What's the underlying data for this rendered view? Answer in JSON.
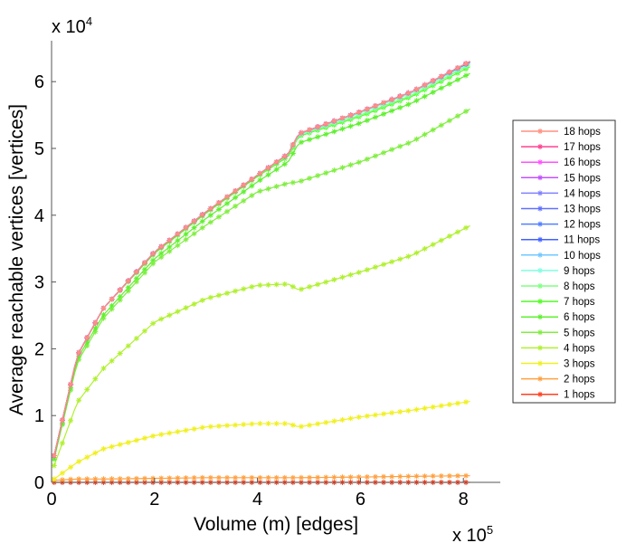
{
  "chart_data": {
    "type": "line",
    "title": "",
    "xlabel": "Volume (m) [edges]",
    "ylabel": "Average reachable vertices [vertices]",
    "x_multiplier": "x 10",
    "x_exponent": "5",
    "y_multiplier": "x 10",
    "y_exponent": "4",
    "xlim": [
      0,
      8.7
    ],
    "ylim": [
      0,
      6.6
    ],
    "xticks": [
      "0",
      "2",
      "4",
      "6",
      "8"
    ],
    "yticks": [
      "0",
      "1",
      "2",
      "3",
      "4",
      "5",
      "6"
    ],
    "grid": false,
    "legend_position": "right",
    "x": [
      0.05,
      0.5,
      1.0,
      2.0,
      3.0,
      4.0,
      4.6,
      4.8,
      6.0,
      7.0,
      8.2
    ],
    "series": [
      {
        "name": "18 hops",
        "color": "#ff9080",
        "values": [
          0.4,
          1.9,
          2.6,
          3.45,
          4.05,
          4.6,
          4.92,
          5.22,
          5.55,
          5.85,
          6.33
        ]
      },
      {
        "name": "17 hops",
        "color": "#ff4090",
        "values": [
          0.4,
          1.9,
          2.6,
          3.45,
          4.05,
          4.6,
          4.92,
          5.22,
          5.55,
          5.85,
          6.33
        ]
      },
      {
        "name": "16 hops",
        "color": "#ff50ff",
        "values": [
          0.4,
          1.9,
          2.6,
          3.45,
          4.05,
          4.6,
          4.92,
          5.22,
          5.55,
          5.85,
          6.33
        ]
      },
      {
        "name": "15 hops",
        "color": "#c050ff",
        "values": [
          0.4,
          1.9,
          2.6,
          3.45,
          4.05,
          4.6,
          4.92,
          5.22,
          5.55,
          5.85,
          6.33
        ]
      },
      {
        "name": "14 hops",
        "color": "#8080ff",
        "values": [
          0.4,
          1.9,
          2.6,
          3.45,
          4.05,
          4.6,
          4.92,
          5.22,
          5.55,
          5.85,
          6.33
        ]
      },
      {
        "name": "13 hops",
        "color": "#6070ff",
        "values": [
          0.4,
          1.9,
          2.6,
          3.45,
          4.05,
          4.6,
          4.92,
          5.22,
          5.55,
          5.85,
          6.33
        ]
      },
      {
        "name": "12 hops",
        "color": "#5080ff",
        "values": [
          0.4,
          1.9,
          2.6,
          3.45,
          4.05,
          4.6,
          4.92,
          5.22,
          5.55,
          5.85,
          6.33
        ]
      },
      {
        "name": "11 hops",
        "color": "#4060ff",
        "values": [
          0.4,
          1.9,
          2.6,
          3.45,
          4.05,
          4.6,
          4.92,
          5.22,
          5.55,
          5.85,
          6.32
        ]
      },
      {
        "name": "10 hops",
        "color": "#70c8ff",
        "values": [
          0.4,
          1.9,
          2.6,
          3.45,
          4.05,
          4.6,
          4.92,
          5.22,
          5.55,
          5.85,
          6.32
        ]
      },
      {
        "name": "9 hops",
        "color": "#80ffe0",
        "values": [
          0.4,
          1.9,
          2.6,
          3.45,
          4.05,
          4.6,
          4.92,
          5.2,
          5.53,
          5.83,
          6.3
        ]
      },
      {
        "name": "8 hops",
        "color": "#80ff80",
        "values": [
          0.4,
          1.9,
          2.6,
          3.45,
          4.05,
          4.6,
          4.9,
          5.2,
          5.5,
          5.8,
          6.28
        ]
      },
      {
        "name": "7 hops",
        "color": "#50ff20",
        "values": [
          0.4,
          1.9,
          2.6,
          3.43,
          4.03,
          4.58,
          4.88,
          5.18,
          5.48,
          5.78,
          6.25
        ]
      },
      {
        "name": "6 hops",
        "color": "#60f030",
        "values": [
          0.35,
          1.85,
          2.5,
          3.35,
          3.95,
          4.5,
          4.8,
          5.08,
          5.38,
          5.68,
          6.15
        ]
      },
      {
        "name": "5 hops",
        "color": "#80ee40",
        "values": [
          0.35,
          1.8,
          2.45,
          3.3,
          3.85,
          4.35,
          4.48,
          4.5,
          4.8,
          5.1,
          5.62
        ]
      },
      {
        "name": "4 hops",
        "color": "#b0f030",
        "values": [
          0.25,
          1.2,
          1.7,
          2.4,
          2.75,
          2.95,
          2.97,
          2.88,
          3.15,
          3.4,
          3.87
        ]
      },
      {
        "name": "3 hops",
        "color": "#f0f020",
        "values": [
          0.05,
          0.3,
          0.5,
          0.7,
          0.83,
          0.88,
          0.88,
          0.83,
          0.98,
          1.08,
          1.22
        ]
      },
      {
        "name": "2 hops",
        "color": "#ffa040",
        "values": [
          0.03,
          0.05,
          0.05,
          0.06,
          0.07,
          0.07,
          0.07,
          0.07,
          0.08,
          0.09,
          0.1
        ]
      },
      {
        "name": "1 hops",
        "color": "#ff4020",
        "values": [
          0.0,
          0.0,
          0.0,
          0.0,
          0.0,
          0.0,
          0.0,
          0.0,
          0.0,
          0.0,
          0.0
        ]
      }
    ]
  }
}
